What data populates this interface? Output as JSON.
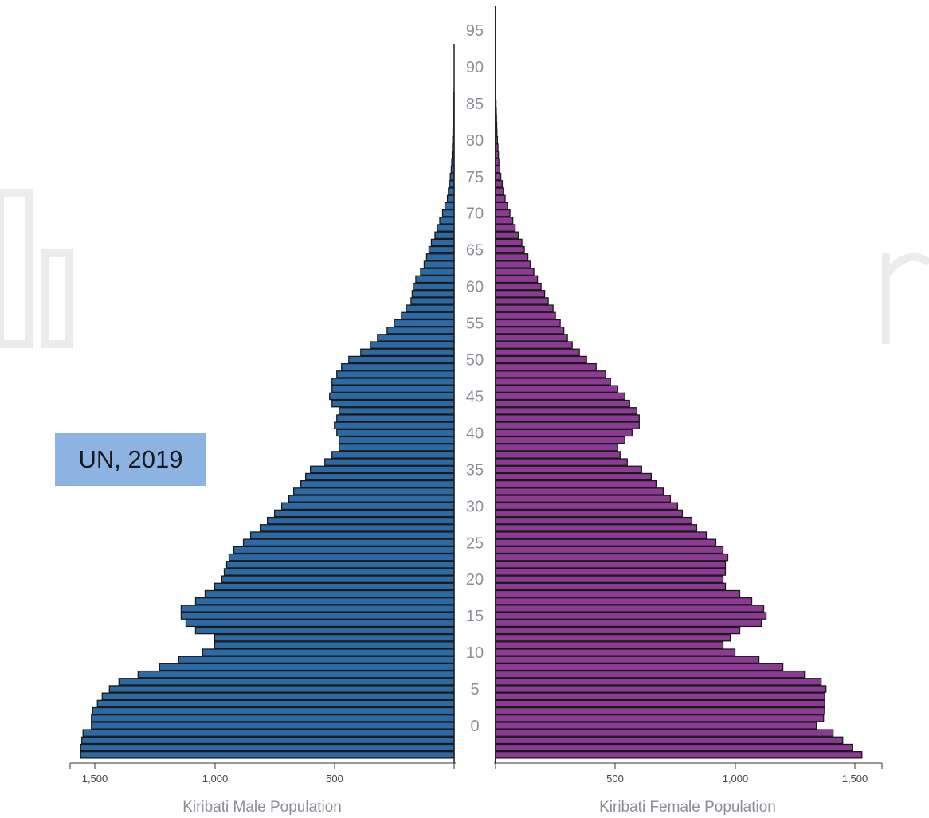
{
  "badge": {
    "text": "UN, 2019"
  },
  "colors": {
    "male": "#2d6aa3",
    "female": "#8b3b92",
    "bar_border": "#1a1a1a",
    "badge": "#8db3e2"
  },
  "chart_data": {
    "type": "bar",
    "subtype": "population-pyramid",
    "age_axis": {
      "labels": [
        "0",
        "5",
        "10",
        "15",
        "20",
        "25",
        "30",
        "35",
        "40",
        "45",
        "50",
        "55",
        "60",
        "65",
        "70",
        "75",
        "80",
        "85",
        "90",
        "95"
      ],
      "range": [
        -4,
        96
      ]
    },
    "age_groups": [
      -4,
      -3,
      -2,
      -1,
      0,
      1,
      2,
      3,
      4,
      5,
      6,
      7,
      8,
      9,
      10,
      11,
      12,
      13,
      14,
      15,
      16,
      17,
      18,
      19,
      20,
      21,
      22,
      23,
      24,
      25,
      26,
      27,
      28,
      29,
      30,
      31,
      32,
      33,
      34,
      35,
      36,
      37,
      38,
      39,
      40,
      41,
      42,
      43,
      44,
      45,
      46,
      47,
      48,
      49,
      50,
      51,
      52,
      53,
      54,
      55,
      56,
      57,
      58,
      59,
      60,
      61,
      62,
      63,
      64,
      65,
      66,
      67,
      68,
      69,
      70,
      71,
      72,
      73,
      74,
      75,
      76,
      77,
      78,
      79,
      80,
      81,
      82,
      83,
      84,
      85,
      86,
      87,
      88,
      89,
      90,
      91,
      92,
      93,
      94,
      95
    ],
    "series": [
      {
        "name": "Kiribati Male Population",
        "values": [
          1560,
          1560,
          1555,
          1550,
          1515,
          1515,
          1510,
          1490,
          1470,
          1440,
          1400,
          1320,
          1230,
          1150,
          1050,
          1000,
          1000,
          1080,
          1120,
          1140,
          1140,
          1080,
          1040,
          1000,
          970,
          960,
          950,
          940,
          920,
          880,
          850,
          810,
          780,
          750,
          720,
          690,
          670,
          640,
          620,
          600,
          540,
          510,
          480,
          480,
          490,
          500,
          490,
          480,
          510,
          520,
          510,
          510,
          490,
          470,
          440,
          390,
          350,
          320,
          280,
          250,
          220,
          200,
          180,
          175,
          170,
          160,
          140,
          125,
          115,
          105,
          95,
          80,
          70,
          60,
          48,
          38,
          28,
          24,
          20,
          16,
          12,
          10,
          8,
          7,
          6,
          5,
          4,
          3,
          2,
          1,
          1,
          0,
          0,
          0,
          0,
          0,
          0,
          0,
          0,
          0
        ],
        "xlabel": "Kiribati Male Population",
        "xticks": [
          "1,500",
          "1,000",
          "500"
        ],
        "xlim": [
          0,
          1580
        ]
      },
      {
        "name": "Kiribati Female Population",
        "values": [
          1530,
          1490,
          1450,
          1410,
          1340,
          1370,
          1375,
          1375,
          1375,
          1380,
          1360,
          1290,
          1200,
          1100,
          1000,
          950,
          980,
          1020,
          1110,
          1130,
          1120,
          1070,
          1020,
          960,
          950,
          960,
          960,
          970,
          950,
          920,
          880,
          840,
          820,
          780,
          760,
          730,
          700,
          670,
          650,
          610,
          550,
          520,
          510,
          540,
          570,
          600,
          600,
          590,
          560,
          540,
          510,
          480,
          460,
          420,
          380,
          350,
          320,
          300,
          285,
          270,
          250,
          240,
          220,
          205,
          190,
          175,
          160,
          145,
          135,
          120,
          110,
          95,
          82,
          72,
          60,
          50,
          40,
          33,
          28,
          22,
          18,
          14,
          12,
          10,
          8,
          6,
          5,
          4,
          3,
          2,
          1,
          0,
          0,
          0,
          0,
          0,
          0,
          0,
          0,
          0
        ],
        "xlabel": "Kiribati Female Population",
        "xticks": [
          "500",
          "1,000",
          "1,500"
        ],
        "xlim": [
          0,
          1580
        ]
      }
    ]
  }
}
